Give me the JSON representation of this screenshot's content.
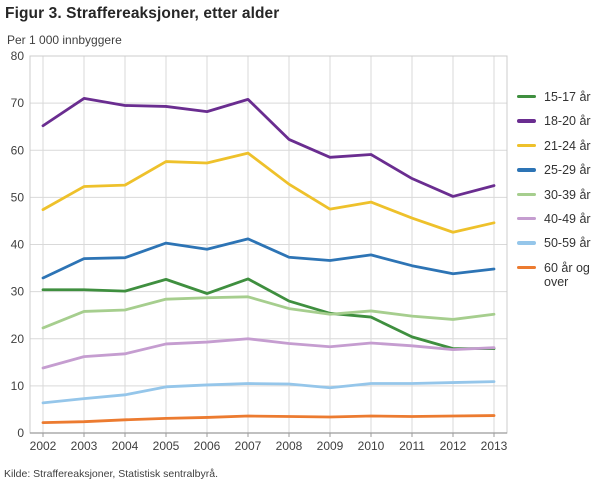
{
  "header": {
    "title": "Figur 3. Straffereaksjoner, etter alder"
  },
  "footer": {
    "source": "Kilde: Straffereaksjoner, Statistisk sentralbyrå."
  },
  "colors": {
    "gridline": "#d9d9d9",
    "plot_border": "#cccccc",
    "axis_line": "#9b9b9b",
    "tick_text": "#404040",
    "title_text": "#262626"
  },
  "chart_data": {
    "type": "line",
    "title": "Figur 3. Straffereaksjoner, etter alder",
    "ylabel": "Per 1 000 innbyggere",
    "xlabel": "",
    "ylim": [
      0,
      80
    ],
    "ytick_step": 10,
    "grid": true,
    "legend_position": "right",
    "categories": [
      "2002",
      "2003",
      "2004",
      "2005",
      "2006",
      "2007",
      "2008",
      "2009",
      "2010",
      "2011",
      "2012",
      "2013"
    ],
    "series": [
      {
        "name": "15-17 år",
        "color": "#3f8f3f",
        "values": [
          30.4,
          30.4,
          30.1,
          32.6,
          29.6,
          32.7,
          28.0,
          25.4,
          24.6,
          20.4,
          17.9,
          17.9
        ]
      },
      {
        "name": "18-20 år",
        "color": "#6a2d90",
        "values": [
          65.2,
          71.0,
          69.5,
          69.3,
          68.2,
          70.8,
          62.3,
          58.5,
          59.1,
          54.0,
          50.2,
          52.5
        ]
      },
      {
        "name": "21-24 år",
        "color": "#eec12b",
        "values": [
          47.4,
          52.3,
          52.6,
          57.6,
          57.3,
          59.4,
          52.8,
          47.5,
          49.0,
          45.6,
          42.6,
          44.6
        ]
      },
      {
        "name": "25-29 år",
        "color": "#2d74b5",
        "values": [
          32.9,
          37.0,
          37.2,
          40.3,
          39.0,
          41.2,
          37.3,
          36.6,
          37.8,
          35.5,
          33.8,
          34.8
        ]
      },
      {
        "name": "30-39 år",
        "color": "#a6ce8e",
        "values": [
          22.3,
          25.8,
          26.1,
          28.4,
          28.7,
          28.9,
          26.4,
          25.2,
          25.9,
          24.8,
          24.1,
          25.2
        ]
      },
      {
        "name": "40-49 år",
        "color": "#c59dd0",
        "values": [
          13.8,
          16.2,
          16.8,
          18.9,
          19.3,
          20.0,
          19.0,
          18.3,
          19.1,
          18.5,
          17.7,
          18.1
        ]
      },
      {
        "name": "50-59 år",
        "color": "#95c6ea",
        "values": [
          6.4,
          7.3,
          8.1,
          9.8,
          10.2,
          10.5,
          10.4,
          9.6,
          10.5,
          10.5,
          10.7,
          10.9
        ]
      },
      {
        "name": "60 år og over",
        "color": "#ec7b30",
        "values": [
          2.2,
          2.4,
          2.8,
          3.1,
          3.3,
          3.6,
          3.5,
          3.4,
          3.6,
          3.5,
          3.6,
          3.7
        ]
      }
    ]
  }
}
